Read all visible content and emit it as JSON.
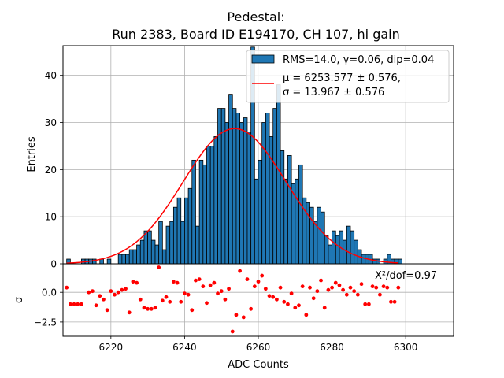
{
  "chart_data": [
    {
      "type": "bar",
      "panel": "histogram",
      "title_line1": "Pedestal:",
      "title_line2": "Run 2383, Board ID E194170, CH 107, hi gain",
      "xlabel": "ADC Counts",
      "ylabel": "Entries",
      "xlim": [
        6207,
        6313
      ],
      "ylim": [
        0,
        46.3
      ],
      "xticks": [
        6220,
        6240,
        6260,
        6280,
        6300
      ],
      "yticks": [
        0,
        10,
        20,
        30,
        40
      ],
      "grid": true,
      "legend_position": "top-right",
      "bar_color": "#1f77b4",
      "fit_color": "#ff0000",
      "bin_width": 1,
      "bin_start": 6208,
      "counts": [
        1,
        0,
        0,
        0,
        1,
        1,
        1,
        1,
        0,
        1,
        0,
        1,
        0,
        0,
        2,
        2,
        2,
        3,
        3,
        4,
        5,
        7,
        7,
        5,
        4,
        9,
        3,
        8,
        9,
        12,
        14,
        9,
        14,
        16,
        22,
        8,
        22,
        21,
        25,
        25,
        27,
        33,
        33,
        30,
        36,
        33,
        32,
        30,
        31,
        28,
        46,
        18,
        22,
        30,
        32,
        27,
        33,
        38,
        24,
        18,
        23,
        17,
        18,
        21,
        14,
        13,
        12,
        9,
        12,
        11,
        6,
        4,
        7,
        6,
        7,
        5,
        8,
        7,
        5,
        3,
        2,
        2,
        2,
        1,
        1,
        0,
        1,
        2,
        1,
        1,
        1
      ],
      "legend": {
        "hist_label": "RMS=14.0, γ=0.06, dip=0.04",
        "fit_label_line1": "μ = 6253.577 ± 0.576,",
        "fit_label_line2": "σ = 13.967 ± 0.576"
      },
      "fit": {
        "type": "gaussian",
        "amplitude": 28.7,
        "mean": 6253.577,
        "sigma": 13.967,
        "x_range": [
          6208,
          6298
        ]
      }
    },
    {
      "type": "scatter",
      "panel": "residuals",
      "ylabel": "σ",
      "xlabel": "ADC Counts",
      "xlim": [
        6207,
        6313
      ],
      "ylim": [
        -3.7,
        2.4
      ],
      "yticks": [
        -2.5,
        0.0
      ],
      "ytick_labels": [
        "−2.5",
        "0.0"
      ],
      "grid": true,
      "color": "#ff0000",
      "annotation": "X²/dof=0.97",
      "points": [
        [
          6208,
          0.4
        ],
        [
          6209,
          -1.0
        ],
        [
          6210,
          -1.0
        ],
        [
          6211,
          -1.0
        ],
        [
          6212,
          -1.0
        ],
        [
          6214,
          0.0
        ],
        [
          6215,
          0.1
        ],
        [
          6216,
          -1.1
        ],
        [
          6217,
          -0.3
        ],
        [
          6218,
          -0.6
        ],
        [
          6219,
          -1.5
        ],
        [
          6220,
          0.1
        ],
        [
          6221,
          -0.2
        ],
        [
          6222,
          0.0
        ],
        [
          6223,
          0.2
        ],
        [
          6224,
          0.3
        ],
        [
          6225,
          -1.7
        ],
        [
          6226,
          0.9
        ],
        [
          6227,
          0.8
        ],
        [
          6228,
          -0.6
        ],
        [
          6229,
          -1.3
        ],
        [
          6230,
          -1.4
        ],
        [
          6231,
          -1.4
        ],
        [
          6232,
          -1.3
        ],
        [
          6233,
          2.1
        ],
        [
          6234,
          -0.7
        ],
        [
          6235,
          -0.4
        ],
        [
          6236,
          -0.8
        ],
        [
          6237,
          0.9
        ],
        [
          6238,
          0.8
        ],
        [
          6239,
          -0.8
        ],
        [
          6240,
          -0.1
        ],
        [
          6241,
          -0.2
        ],
        [
          6242,
          -1.5
        ],
        [
          6243,
          1.0
        ],
        [
          6244,
          1.1
        ],
        [
          6245,
          0.5
        ],
        [
          6246,
          -0.9
        ],
        [
          6247,
          0.6
        ],
        [
          6248,
          0.8
        ],
        [
          6249,
          -0.1
        ],
        [
          6250,
          0.1
        ],
        [
          6251,
          -0.6
        ],
        [
          6252,
          0.3
        ],
        [
          6253,
          -3.3
        ],
        [
          6254,
          -1.9
        ],
        [
          6255,
          1.8
        ],
        [
          6256,
          -2.1
        ],
        [
          6257,
          1.1
        ],
        [
          6258,
          -1.4
        ],
        [
          6259,
          0.5
        ],
        [
          6260,
          0.9
        ],
        [
          6261,
          1.4
        ],
        [
          6262,
          0.3
        ],
        [
          6263,
          -0.3
        ],
        [
          6264,
          -0.4
        ],
        [
          6265,
          -0.6
        ],
        [
          6266,
          0.4
        ],
        [
          6267,
          -0.8
        ],
        [
          6268,
          -1.0
        ],
        [
          6269,
          -0.1
        ],
        [
          6270,
          -1.3
        ],
        [
          6271,
          -1.1
        ],
        [
          6272,
          0.5
        ],
        [
          6273,
          -1.9
        ],
        [
          6274,
          0.4
        ],
        [
          6275,
          -0.5
        ],
        [
          6276,
          0.1
        ],
        [
          6277,
          1.0
        ],
        [
          6278,
          -1.3
        ],
        [
          6279,
          0.2
        ],
        [
          6280,
          0.4
        ],
        [
          6281,
          0.8
        ],
        [
          6282,
          0.6
        ],
        [
          6283,
          0.2
        ],
        [
          6284,
          -0.2
        ],
        [
          6285,
          0.4
        ],
        [
          6286,
          0.1
        ],
        [
          6287,
          -0.2
        ],
        [
          6288,
          0.7
        ],
        [
          6289,
          -1.0
        ],
        [
          6290,
          -1.0
        ],
        [
          6291,
          0.5
        ],
        [
          6292,
          0.4
        ],
        [
          6293,
          -0.2
        ],
        [
          6294,
          0.5
        ],
        [
          6295,
          0.4
        ],
        [
          6296,
          -0.8
        ],
        [
          6297,
          -0.8
        ],
        [
          6298,
          0.4
        ]
      ]
    }
  ]
}
